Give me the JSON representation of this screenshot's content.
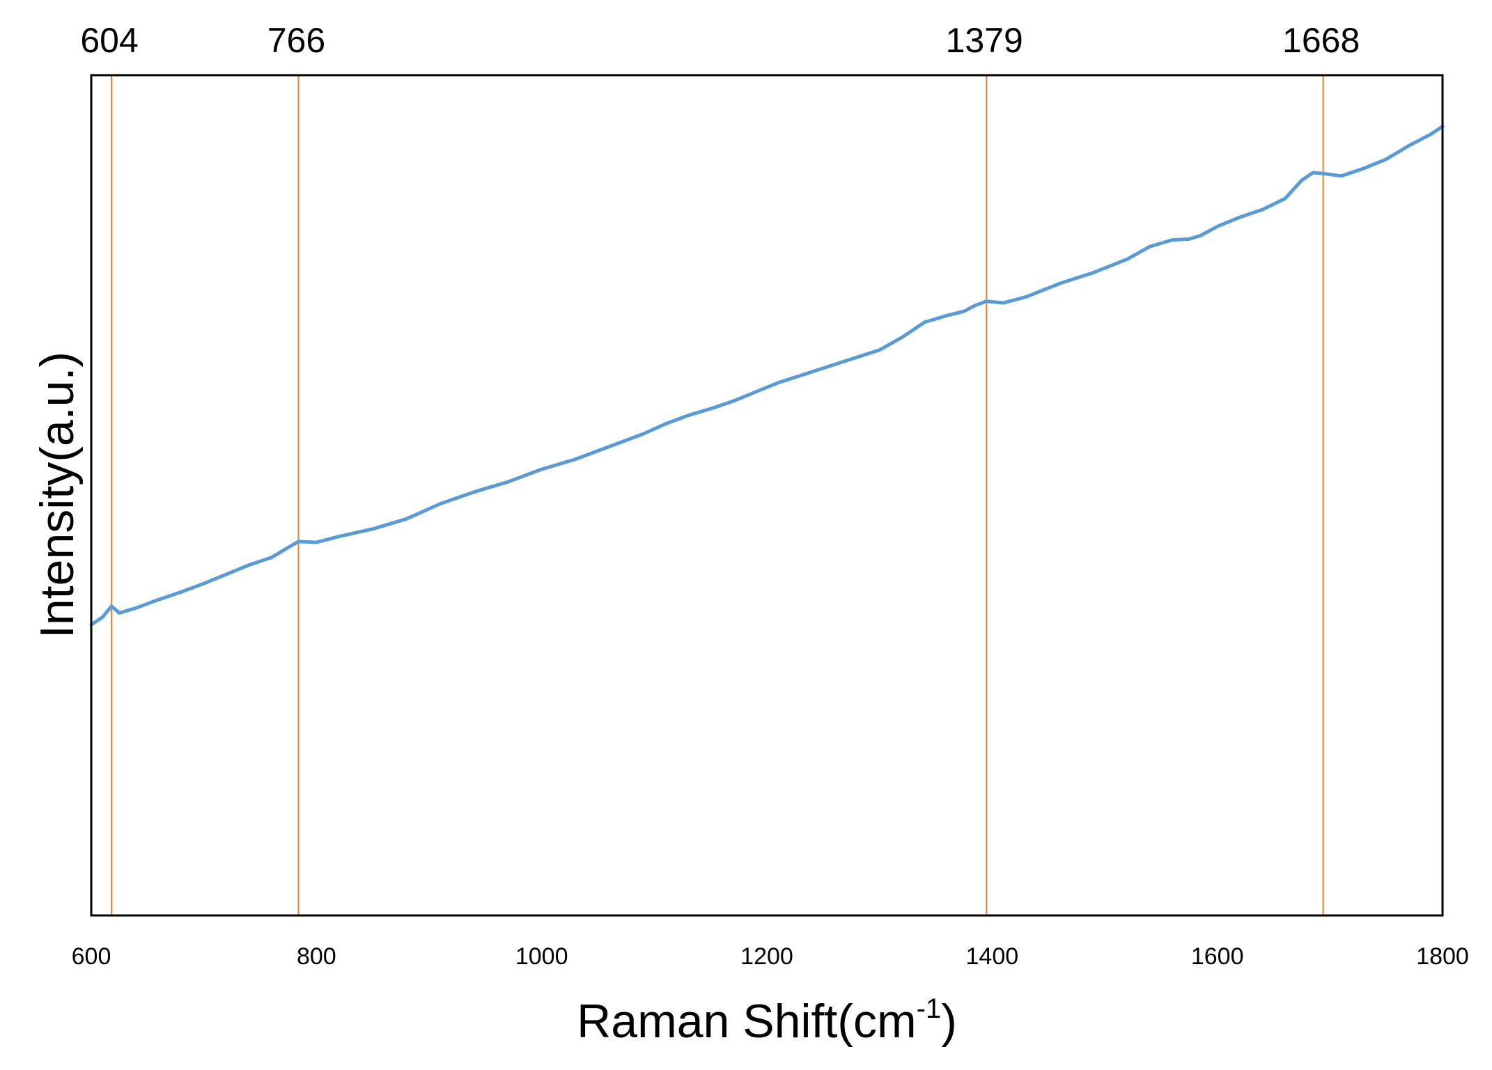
{
  "chart_data": {
    "type": "line",
    "title": "",
    "xlabel": "Raman Shift(cm",
    "xlabel_sup": "-1",
    "xlabel_suffix": ")",
    "ylabel": "Intensity(a.u.)",
    "xlim": [
      600,
      1800
    ],
    "ylim": [
      0,
      100
    ],
    "x_ticks": [
      600,
      800,
      1000,
      1200,
      1400,
      1600,
      1800
    ],
    "y_ticks": [],
    "grid": false,
    "legend": "none",
    "line_color": "#5B9BD5",
    "marker_color": "#ED7D31",
    "frame_color": "#000000",
    "peaks": [
      {
        "label": "604",
        "x": 618
      },
      {
        "label": "766",
        "x": 784
      },
      {
        "label": "1379",
        "x": 1395
      },
      {
        "label": "1668",
        "x": 1694
      }
    ],
    "series": [
      {
        "x": [
          600,
          610,
          618,
          625,
          640,
          660,
          680,
          700,
          720,
          740,
          760,
          775,
          784,
          800,
          820,
          850,
          880,
          910,
          940,
          970,
          1000,
          1030,
          1060,
          1090,
          1110,
          1130,
          1150,
          1170,
          1190,
          1210,
          1240,
          1270,
          1300,
          1320,
          1340,
          1360,
          1375,
          1385,
          1395,
          1410,
          1430,
          1460,
          1490,
          1520,
          1540,
          1560,
          1575,
          1585,
          1600,
          1620,
          1640,
          1660,
          1675,
          1685,
          1694,
          1710,
          1730,
          1750,
          1770,
          1790,
          1800
        ],
        "y": [
          34.6,
          35.5,
          36.8,
          36.0,
          36.6,
          37.6,
          38.5,
          39.5,
          40.6,
          41.7,
          42.6,
          43.8,
          44.5,
          44.4,
          45.1,
          46.0,
          47.2,
          49.0,
          50.4,
          51.6,
          53.1,
          54.3,
          55.8,
          57.3,
          58.5,
          59.5,
          60.3,
          61.2,
          62.3,
          63.4,
          64.7,
          66.0,
          67.3,
          68.8,
          70.6,
          71.4,
          71.9,
          72.6,
          73.1,
          72.9,
          73.6,
          75.2,
          76.5,
          78.1,
          79.6,
          80.4,
          80.5,
          80.9,
          82.0,
          83.1,
          84.0,
          85.3,
          87.5,
          88.4,
          88.3,
          88.0,
          88.9,
          90.0,
          91.6,
          93.0,
          93.9
        ]
      }
    ]
  }
}
